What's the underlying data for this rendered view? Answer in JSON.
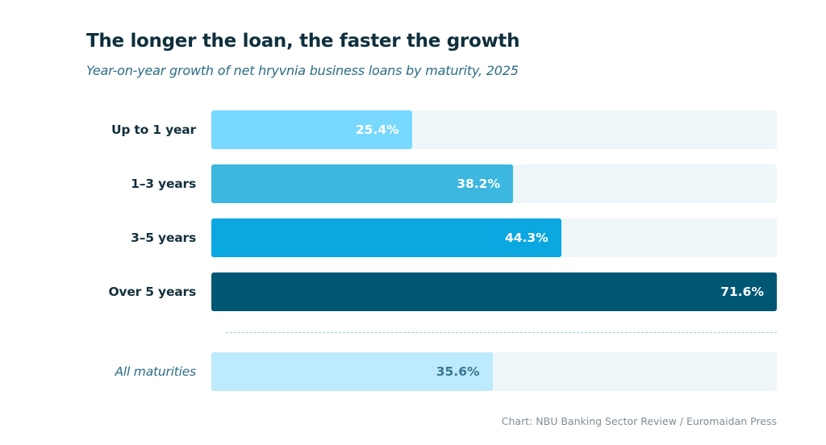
{
  "chart_data": {
    "type": "bar",
    "orientation": "horizontal",
    "title": "The longer the loan, the faster the growth",
    "subtitle": "Year-on-year growth of net hryvnia business loans by maturity, 2025",
    "categories": [
      "Up to 1 year",
      "1–3 years",
      "3–5 years",
      "Over 5 years"
    ],
    "values": [
      25.4,
      38.2,
      44.3,
      71.6
    ],
    "value_labels": [
      "25.4%",
      "38.2%",
      "44.3%",
      "71.6%"
    ],
    "colors": [
      "#78d8fe",
      "#3bb7e0",
      "#0aa7e1",
      "#005774"
    ],
    "total": {
      "label": "All maturities",
      "value": 35.6,
      "value_label": "35.6%",
      "color": "#bdeafc",
      "text_color": "#3b7790"
    },
    "xlim": [
      0,
      71.6
    ],
    "unit": "%",
    "grid": false,
    "source": "Chart: NBU Banking Sector Review / Euromaidan Press"
  }
}
